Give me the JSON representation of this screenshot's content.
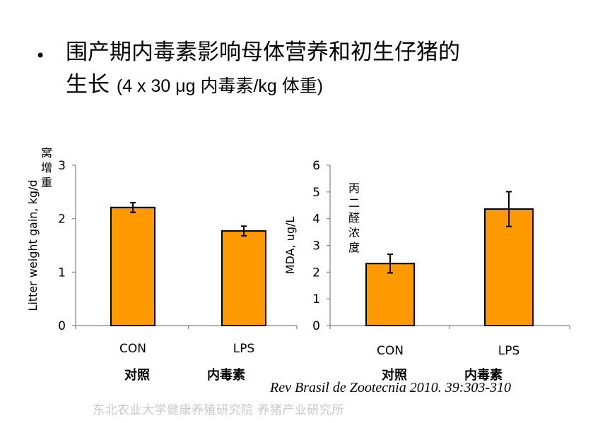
{
  "slide": {
    "bullet": "•",
    "title_line1": "围产期内毒素影响母体营养和初生仔猪的",
    "title_line2_cn": "生长",
    "title_line2_dose": "(4 x 30 μg 内毒素/kg 体重)",
    "citation": "Rev Brasil de Zootecnia 2010. 39:303-310",
    "watermark": "东北农业大学健康养殖研究院 养猪产业研究所"
  },
  "colors": {
    "bar": "#ff9900",
    "bar_stroke": "#000000",
    "axis": "#808080"
  },
  "chart_data": [
    {
      "type": "bar",
      "categories": [
        "CON",
        "LPS"
      ],
      "categories_cn": [
        "对照",
        "内毒素"
      ],
      "values": [
        2.21,
        1.77
      ],
      "errors": [
        0.09,
        0.09
      ],
      "ylabel": "Litter weight gain, kg/d",
      "ylabel_cn": "窝增重",
      "ylim": [
        0,
        3
      ],
      "yticks": [
        "0",
        "1",
        "2",
        "3"
      ],
      "grid": false
    },
    {
      "type": "bar",
      "categories": [
        "CON",
        "LPS"
      ],
      "categories_cn": [
        "对照",
        "内毒素"
      ],
      "values": [
        2.32,
        4.36
      ],
      "errors": [
        0.35,
        0.65
      ],
      "ylabel": "MDA, ug/L",
      "ylabel_cn": "丙二醛浓度",
      "ylim": [
        0,
        6
      ],
      "yticks": [
        "0",
        "1",
        "2",
        "3",
        "4",
        "5",
        "6"
      ],
      "grid": false
    }
  ]
}
